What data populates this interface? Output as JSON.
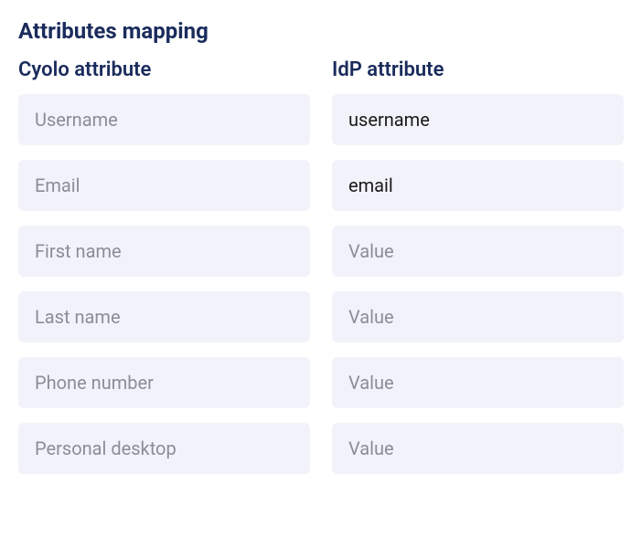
{
  "section_title": "Attributes mapping",
  "columns": {
    "left": {
      "header": "Cyolo attribute",
      "fields": [
        {
          "label": "Username"
        },
        {
          "label": "Email"
        },
        {
          "label": "First name"
        },
        {
          "label": "Last name"
        },
        {
          "label": "Phone number"
        },
        {
          "label": "Personal desktop"
        }
      ]
    },
    "right": {
      "header": "IdP attribute",
      "fields": [
        {
          "value": "username",
          "placeholder": "Value"
        },
        {
          "value": "email",
          "placeholder": "Value"
        },
        {
          "value": "",
          "placeholder": "Value"
        },
        {
          "value": "",
          "placeholder": "Value"
        },
        {
          "value": "",
          "placeholder": "Value"
        },
        {
          "value": "",
          "placeholder": "Value"
        }
      ]
    }
  },
  "styling": {
    "background_color": "#ffffff",
    "field_background_color": "#f2f3fa",
    "title_color": "#1a2b5c",
    "header_color": "#1a2b5c",
    "placeholder_color": "#8a8d99",
    "value_color": "#1a1a1a",
    "field_border_radius": 6,
    "title_fontsize": 24,
    "header_fontsize": 22,
    "field_fontsize": 20
  }
}
